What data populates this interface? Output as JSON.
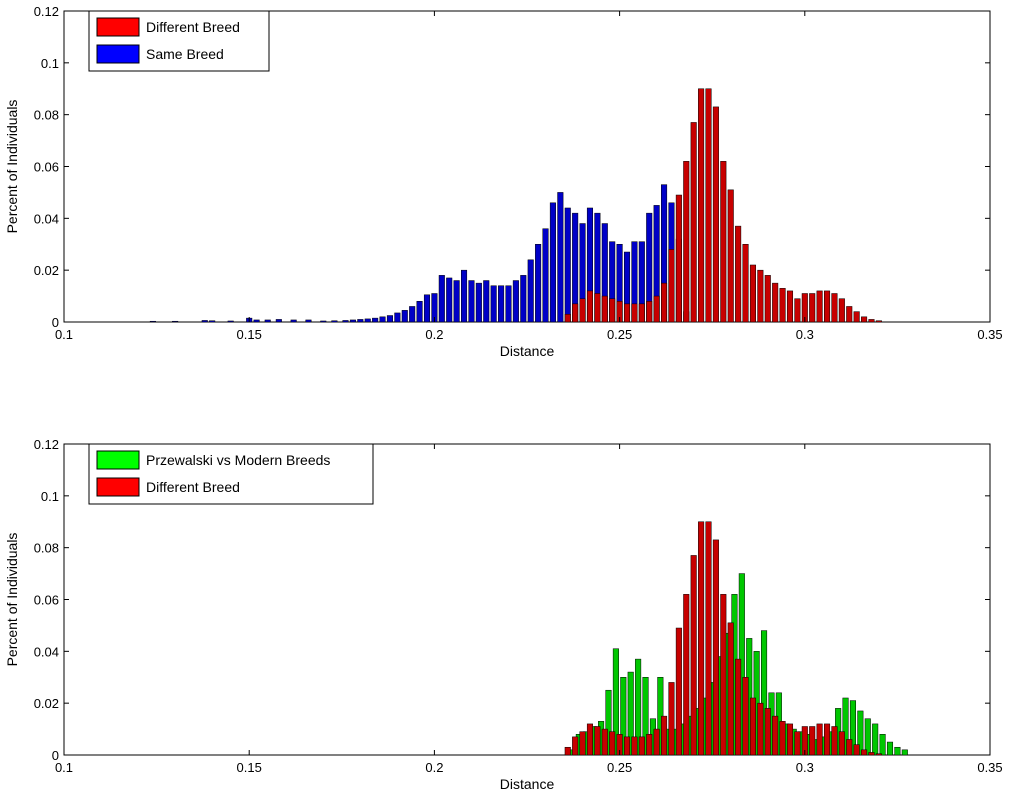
{
  "chart_data": [
    {
      "type": "bar",
      "xlabel": "Distance",
      "ylabel": "Percent of Individuals",
      "xlim": [
        0.1,
        0.35
      ],
      "ylim": [
        0,
        0.12
      ],
      "xticks": [
        0.1,
        0.15,
        0.2,
        0.25,
        0.3,
        0.35
      ],
      "xtick_labels": [
        "0.1",
        "0.15",
        "0.2",
        "0.25",
        "0.3",
        "0.35"
      ],
      "yticks": [
        0,
        0.02,
        0.04,
        0.06,
        0.08,
        0.1,
        0.12
      ],
      "ytick_labels": [
        "0",
        "0.02",
        "0.04",
        "0.06",
        "0.08",
        "0.1",
        "0.12"
      ],
      "bin_width": 0.001,
      "legend_position": "top-left",
      "series": [
        {
          "name": "Same Breed",
          "color": "#0000ff",
          "x": [
            0.124,
            0.13,
            0.138,
            0.14,
            0.145,
            0.15,
            0.152,
            0.155,
            0.158,
            0.162,
            0.166,
            0.17,
            0.173,
            0.176,
            0.178,
            0.18,
            0.182,
            0.184,
            0.186,
            0.188,
            0.19,
            0.192,
            0.194,
            0.196,
            0.198,
            0.2,
            0.202,
            0.204,
            0.206,
            0.208,
            0.21,
            0.212,
            0.214,
            0.216,
            0.218,
            0.22,
            0.222,
            0.224,
            0.226,
            0.228,
            0.23,
            0.232,
            0.234,
            0.236,
            0.238,
            0.24,
            0.242,
            0.244,
            0.246,
            0.248,
            0.25,
            0.252,
            0.254,
            0.256,
            0.258,
            0.26,
            0.262,
            0.264,
            0.266,
            0.268
          ],
          "values": [
            0.0003,
            0.0003,
            0.0006,
            0.0005,
            0.0004,
            0.0015,
            0.0008,
            0.0008,
            0.001,
            0.0008,
            0.0008,
            0.0004,
            0.0005,
            0.0006,
            0.0008,
            0.001,
            0.0012,
            0.0015,
            0.002,
            0.0025,
            0.0035,
            0.0045,
            0.006,
            0.008,
            0.0105,
            0.011,
            0.018,
            0.017,
            0.016,
            0.02,
            0.016,
            0.015,
            0.016,
            0.014,
            0.014,
            0.014,
            0.016,
            0.018,
            0.024,
            0.03,
            0.036,
            0.046,
            0.05,
            0.044,
            0.042,
            0.038,
            0.044,
            0.042,
            0.038,
            0.031,
            0.03,
            0.027,
            0.031,
            0.031,
            0.042,
            0.045,
            0.053,
            0.046,
            0.032,
            0.004
          ]
        },
        {
          "name": "Different Breed",
          "color": "#ff0000",
          "x": [
            0.236,
            0.238,
            0.24,
            0.242,
            0.244,
            0.246,
            0.248,
            0.25,
            0.252,
            0.254,
            0.256,
            0.258,
            0.26,
            0.262,
            0.264,
            0.266,
            0.268,
            0.27,
            0.272,
            0.274,
            0.276,
            0.278,
            0.28,
            0.282,
            0.284,
            0.286,
            0.288,
            0.29,
            0.292,
            0.294,
            0.296,
            0.298,
            0.3,
            0.302,
            0.304,
            0.306,
            0.308,
            0.31,
            0.312,
            0.314,
            0.316,
            0.318,
            0.32
          ],
          "values": [
            0.003,
            0.007,
            0.009,
            0.012,
            0.011,
            0.01,
            0.009,
            0.008,
            0.007,
            0.007,
            0.007,
            0.008,
            0.01,
            0.015,
            0.028,
            0.049,
            0.062,
            0.077,
            0.09,
            0.09,
            0.083,
            0.062,
            0.051,
            0.037,
            0.03,
            0.022,
            0.02,
            0.018,
            0.015,
            0.013,
            0.012,
            0.009,
            0.011,
            0.011,
            0.012,
            0.012,
            0.011,
            0.009,
            0.006,
            0.004,
            0.002,
            0.001,
            0.0005
          ]
        }
      ]
    },
    {
      "type": "bar",
      "xlabel": "Distance",
      "ylabel": "Percent of Individuals",
      "xlim": [
        0.1,
        0.35
      ],
      "ylim": [
        0,
        0.12
      ],
      "xticks": [
        0.1,
        0.15,
        0.2,
        0.25,
        0.3,
        0.35
      ],
      "xtick_labels": [
        "0.1",
        "0.15",
        "0.2",
        "0.25",
        "0.3",
        "0.35"
      ],
      "yticks": [
        0,
        0.02,
        0.04,
        0.06,
        0.08,
        0.1,
        0.12
      ],
      "ytick_labels": [
        "0",
        "0.02",
        "0.04",
        "0.06",
        "0.08",
        "0.1",
        "0.12"
      ],
      "bin_width": 0.001,
      "legend_position": "top-left",
      "series": [
        {
          "name": "Przewalski vs Modern Breeds",
          "color": "#00ff00",
          "x": [
            0.237,
            0.239,
            0.241,
            0.243,
            0.245,
            0.247,
            0.249,
            0.251,
            0.253,
            0.255,
            0.257,
            0.259,
            0.261,
            0.263,
            0.265,
            0.267,
            0.269,
            0.271,
            0.273,
            0.275,
            0.277,
            0.279,
            0.281,
            0.283,
            0.285,
            0.287,
            0.289,
            0.291,
            0.293,
            0.295,
            0.297,
            0.299,
            0.301,
            0.303,
            0.305,
            0.307,
            0.309,
            0.311,
            0.313,
            0.315,
            0.317,
            0.319,
            0.321,
            0.323,
            0.325,
            0.327
          ],
          "values": [
            0.002,
            0.008,
            0.009,
            0.011,
            0.013,
            0.025,
            0.041,
            0.03,
            0.032,
            0.037,
            0.03,
            0.014,
            0.03,
            0.01,
            0.01,
            0.012,
            0.015,
            0.018,
            0.022,
            0.028,
            0.038,
            0.047,
            0.062,
            0.07,
            0.045,
            0.04,
            0.048,
            0.024,
            0.024,
            0.012,
            0.01,
            0.009,
            0.008,
            0.006,
            0.007,
            0.009,
            0.018,
            0.022,
            0.021,
            0.017,
            0.014,
            0.012,
            0.008,
            0.005,
            0.003,
            0.002
          ]
        },
        {
          "name": "Different Breed",
          "color": "#ff0000",
          "x": [
            0.236,
            0.238,
            0.24,
            0.242,
            0.244,
            0.246,
            0.248,
            0.25,
            0.252,
            0.254,
            0.256,
            0.258,
            0.26,
            0.262,
            0.264,
            0.266,
            0.268,
            0.27,
            0.272,
            0.274,
            0.276,
            0.278,
            0.28,
            0.282,
            0.284,
            0.286,
            0.288,
            0.29,
            0.292,
            0.294,
            0.296,
            0.298,
            0.3,
            0.302,
            0.304,
            0.306,
            0.308,
            0.31,
            0.312,
            0.314,
            0.316,
            0.318,
            0.32
          ],
          "values": [
            0.003,
            0.007,
            0.009,
            0.012,
            0.011,
            0.01,
            0.009,
            0.008,
            0.007,
            0.007,
            0.007,
            0.008,
            0.01,
            0.015,
            0.028,
            0.049,
            0.062,
            0.077,
            0.09,
            0.09,
            0.083,
            0.062,
            0.051,
            0.037,
            0.03,
            0.022,
            0.02,
            0.018,
            0.015,
            0.013,
            0.012,
            0.009,
            0.011,
            0.011,
            0.012,
            0.012,
            0.011,
            0.009,
            0.006,
            0.004,
            0.002,
            0.001,
            0.0005
          ]
        }
      ]
    }
  ]
}
